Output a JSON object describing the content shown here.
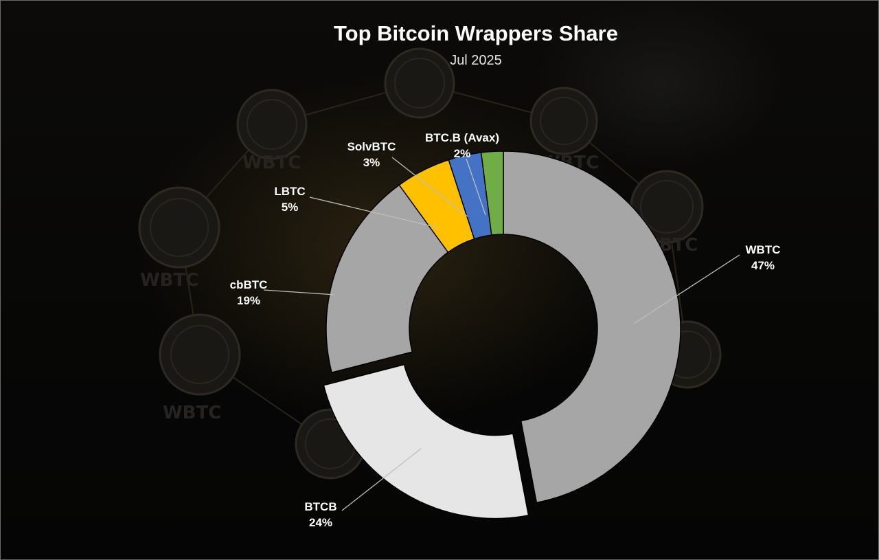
{
  "chart_data": {
    "type": "pie",
    "title": "Top Bitcoin Wrappers Share",
    "subtitle": "Jul 2025",
    "slices": [
      {
        "label": "WBTC",
        "value": 47,
        "value_label": "47%",
        "color": "#a6a6a6"
      },
      {
        "label": "BTCB",
        "value": 24,
        "value_label": "24%",
        "color": "#e6e6e6"
      },
      {
        "label": "cbBTC",
        "value": 19,
        "value_label": "19%",
        "color": "#a6a6a6"
      },
      {
        "label": "LBTC",
        "value": 5,
        "value_label": "5%",
        "color": "#ffc000"
      },
      {
        "label": "SolvBTC",
        "value": 3,
        "value_label": "3%",
        "color": "#4472c4"
      },
      {
        "label": "BTC.B (Avax)",
        "value": 2,
        "value_label": "2%",
        "color": "#70ad47"
      }
    ],
    "legend": "none",
    "hole": "donut"
  },
  "background_text": [
    "WBTC",
    "WBTC",
    "WBTC",
    "WBTC",
    "WBTC"
  ]
}
